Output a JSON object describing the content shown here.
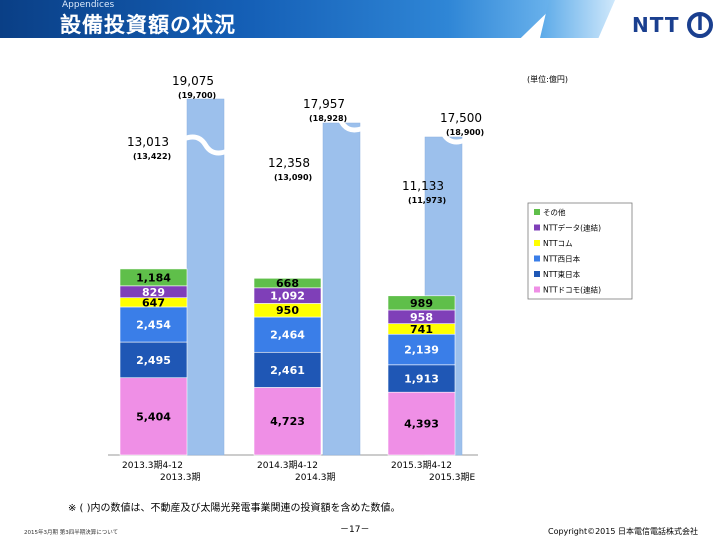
{
  "header": {
    "section": "Appendices",
    "title": "設備投資額の状況",
    "logo_text": "NTT"
  },
  "colors": {
    "docomo": "#ef8fe6",
    "east": "#1f57b5",
    "west": "#3a7ee8",
    "com": "#ffff00",
    "data": "#7f3fb8",
    "other": "#5fbf4a",
    "total_bar": "#9cc0ec"
  },
  "chart_data": {
    "type": "bar",
    "stacked": true,
    "unit": "(単位:億円)",
    "categories": [
      {
        "line1": "2013.3期4-12",
        "line2": "2013.3期"
      },
      {
        "line1": "2014.3期4-12",
        "line2": "2014.3期"
      },
      {
        "line1": "2015.3期4-12",
        "line2": "2015.3期E"
      }
    ],
    "series": [
      {
        "key": "docomo",
        "name": "NTTドコモ(連結)",
        "values": [
          5404,
          4723,
          4393
        ],
        "labels": [
          "5,404",
          "4,723",
          "4,393"
        ]
      },
      {
        "key": "east",
        "name": "NTT東日本",
        "values": [
          2495,
          2461,
          1913
        ],
        "labels": [
          "2,495",
          "2,461",
          "1,913"
        ]
      },
      {
        "key": "west",
        "name": "NTT西日本",
        "values": [
          2454,
          2464,
          2139
        ],
        "labels": [
          "2,454",
          "2,464",
          "2,139"
        ]
      },
      {
        "key": "com",
        "name": "NTTコム",
        "values": [
          647,
          950,
          741
        ],
        "labels": [
          "647",
          "950",
          "741"
        ]
      },
      {
        "key": "data",
        "name": "NTTデータ(連結)",
        "values": [
          829,
          1092,
          958
        ],
        "labels": [
          "829",
          "1,092",
          "958"
        ]
      },
      {
        "key": "other",
        "name": "その他",
        "values": [
          1184,
          668,
          989
        ],
        "labels": [
          "1,184",
          "668",
          "989"
        ]
      }
    ],
    "totals_9m": [
      {
        "value": 13013,
        "label": "13,013",
        "sub": "(13,422)"
      },
      {
        "value": 12358,
        "label": "12,358",
        "sub": "(13,090)"
      },
      {
        "value": 11133,
        "label": "11,133",
        "sub": "(11,973)"
      }
    ],
    "totals_fy": [
      {
        "value": 19075,
        "label": "19,075",
        "sub": "(19,700)"
      },
      {
        "value": 17957,
        "label": "17,957",
        "sub": "(18,928)"
      },
      {
        "value": 17500,
        "label": "17,500",
        "sub": "(18,900)"
      }
    ],
    "axis_break": true,
    "legend_position": "right",
    "grid": false
  },
  "footer": {
    "note": "※ ( )内の数値は、不動産及び太陽光発電事業関連の投資額を含めた数値。",
    "left": "2015年3月期 第3四半期決算について",
    "page": "－17－",
    "copyright": "Copyright©2015 日本電信電話株式会社"
  }
}
